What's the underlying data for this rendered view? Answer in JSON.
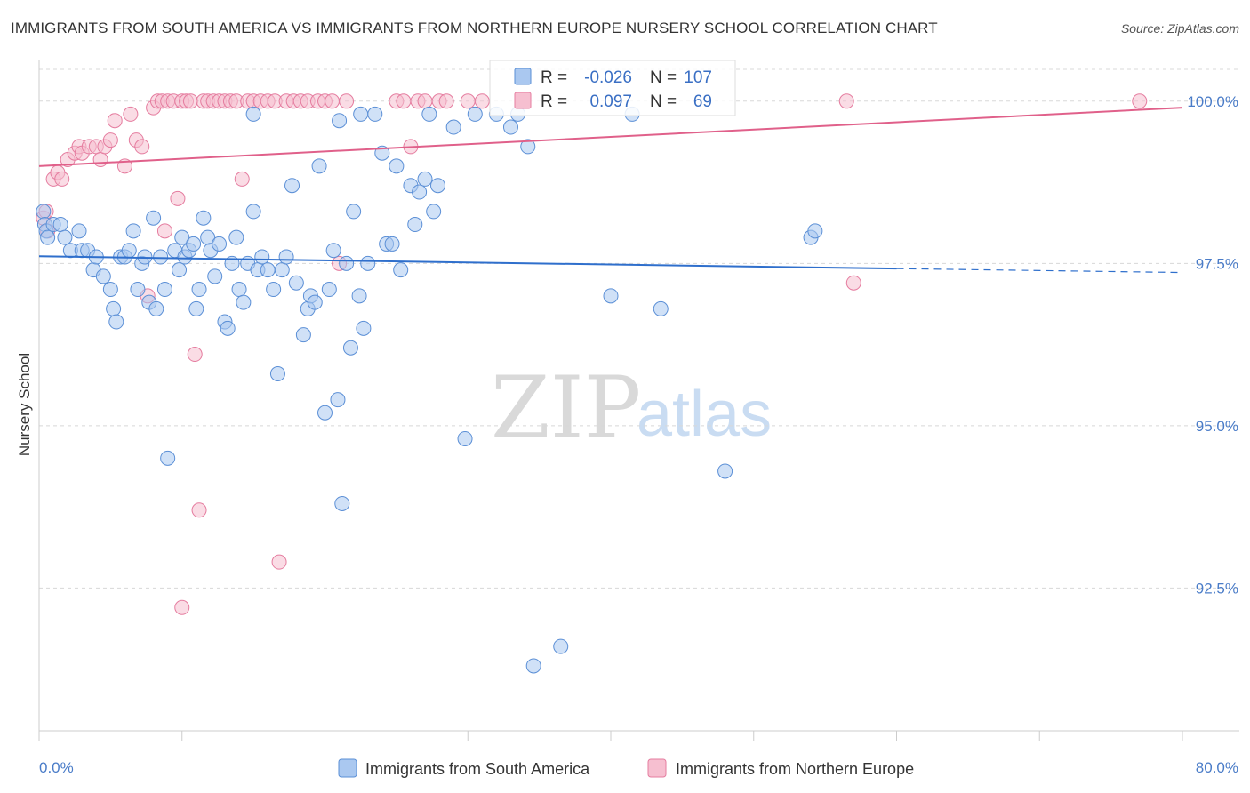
{
  "title": "IMMIGRANTS FROM SOUTH AMERICA VS IMMIGRANTS FROM NORTHERN EUROPE NURSERY SCHOOL CORRELATION CHART",
  "source": "Source: ZipAtlas.com",
  "watermark": {
    "zip": "ZIP",
    "atlas": "atlas"
  },
  "colors": {
    "blue_fill": "#aac8f0",
    "blue_stroke": "#5b8fd6",
    "blue_line": "#2f6fcc",
    "pink_fill": "#f6bfd0",
    "pink_stroke": "#e57c9f",
    "pink_line": "#e0608a",
    "grid": "#d8d8d8",
    "tick_text": "#4a7cc8"
  },
  "legend": {
    "r_label": "R =",
    "n_label": "N =",
    "rows": [
      {
        "series": "blue",
        "r": "-0.026",
        "n": "107"
      },
      {
        "series": "pink",
        "r": "0.097",
        "n": "69"
      }
    ]
  },
  "chart_data": {
    "type": "scatter",
    "title": "IMMIGRANTS FROM SOUTH AMERICA VS IMMIGRANTS FROM NORTHERN EUROPE NURSERY SCHOOL CORRELATION CHART",
    "xlabel": "",
    "ylabel": "Nursery School",
    "xlim": [
      0,
      80
    ],
    "ylim": [
      90.3,
      100.6
    ],
    "x_tick_labels": [
      "0.0%",
      "80.0%"
    ],
    "y_ticks": [
      92.5,
      95.0,
      97.5,
      100.0
    ],
    "y_tick_labels": [
      "92.5%",
      "95.0%",
      "97.5%",
      "100.0%"
    ],
    "grid": true,
    "series": [
      {
        "name": "Immigrants from South America",
        "color": "blue",
        "r": -0.026,
        "n": 107,
        "trend": {
          "x0": 0,
          "y0": 97.61,
          "x1": 60,
          "y1": 97.42,
          "dashed_to": 80,
          "dashed_y": 97.36
        },
        "points": [
          [
            0.3,
            98.3
          ],
          [
            0.4,
            98.1
          ],
          [
            0.5,
            98.0
          ],
          [
            0.6,
            97.9
          ],
          [
            1.0,
            98.1
          ],
          [
            1.5,
            98.1
          ],
          [
            1.8,
            97.9
          ],
          [
            2.2,
            97.7
          ],
          [
            2.8,
            98.0
          ],
          [
            3.0,
            97.7
          ],
          [
            3.4,
            97.7
          ],
          [
            3.8,
            97.4
          ],
          [
            4.0,
            97.6
          ],
          [
            4.5,
            97.3
          ],
          [
            5.0,
            97.1
          ],
          [
            5.2,
            96.8
          ],
          [
            5.4,
            96.6
          ],
          [
            5.7,
            97.6
          ],
          [
            6.0,
            97.6
          ],
          [
            6.3,
            97.7
          ],
          [
            6.6,
            98.0
          ],
          [
            6.9,
            97.1
          ],
          [
            7.2,
            97.5
          ],
          [
            7.4,
            97.6
          ],
          [
            7.7,
            96.9
          ],
          [
            8.0,
            98.2
          ],
          [
            8.2,
            96.8
          ],
          [
            8.5,
            97.6
          ],
          [
            8.8,
            97.1
          ],
          [
            9.0,
            94.5
          ],
          [
            9.5,
            97.7
          ],
          [
            9.8,
            97.4
          ],
          [
            10.0,
            97.9
          ],
          [
            10.2,
            97.6
          ],
          [
            10.5,
            97.7
          ],
          [
            10.8,
            97.8
          ],
          [
            11.0,
            96.8
          ],
          [
            11.2,
            97.1
          ],
          [
            11.5,
            98.2
          ],
          [
            11.8,
            97.9
          ],
          [
            12.0,
            97.7
          ],
          [
            12.3,
            97.3
          ],
          [
            12.6,
            97.8
          ],
          [
            13.0,
            96.6
          ],
          [
            13.2,
            96.5
          ],
          [
            13.5,
            97.5
          ],
          [
            13.8,
            97.9
          ],
          [
            14.0,
            97.1
          ],
          [
            14.3,
            96.9
          ],
          [
            14.6,
            97.5
          ],
          [
            15.0,
            98.3
          ],
          [
            15.3,
            97.4
          ],
          [
            15.6,
            97.6
          ],
          [
            16.0,
            97.4
          ],
          [
            16.4,
            97.1
          ],
          [
            16.7,
            95.8
          ],
          [
            17.0,
            97.4
          ],
          [
            17.3,
            97.6
          ],
          [
            17.7,
            98.7
          ],
          [
            18.0,
            97.2
          ],
          [
            18.5,
            96.4
          ],
          [
            18.8,
            96.8
          ],
          [
            19.0,
            97.0
          ],
          [
            19.3,
            96.9
          ],
          [
            19.6,
            99.0
          ],
          [
            20.0,
            95.2
          ],
          [
            20.3,
            97.1
          ],
          [
            20.6,
            97.7
          ],
          [
            20.9,
            95.4
          ],
          [
            21.2,
            93.8
          ],
          [
            21.5,
            97.5
          ],
          [
            21.8,
            96.2
          ],
          [
            22.0,
            98.3
          ],
          [
            22.4,
            97.0
          ],
          [
            22.7,
            96.5
          ],
          [
            23.0,
            97.5
          ],
          [
            23.5,
            99.8
          ],
          [
            24.0,
            99.2
          ],
          [
            24.3,
            97.8
          ],
          [
            24.7,
            97.8
          ],
          [
            25.0,
            99.0
          ],
          [
            25.3,
            97.4
          ],
          [
            26.0,
            98.7
          ],
          [
            26.3,
            98.1
          ],
          [
            26.6,
            98.6
          ],
          [
            27.0,
            98.8
          ],
          [
            27.3,
            99.8
          ],
          [
            27.6,
            98.3
          ],
          [
            27.9,
            98.7
          ],
          [
            29.0,
            99.6
          ],
          [
            29.8,
            94.8
          ],
          [
            30.5,
            99.8
          ],
          [
            32.0,
            99.8
          ],
          [
            33.0,
            99.6
          ],
          [
            33.5,
            99.8
          ],
          [
            34.2,
            99.3
          ],
          [
            34.6,
            91.3
          ],
          [
            36.5,
            91.6
          ],
          [
            40.0,
            97.0
          ],
          [
            41.5,
            99.8
          ],
          [
            43.5,
            96.8
          ],
          [
            48.0,
            94.3
          ],
          [
            54.0,
            97.9
          ],
          [
            54.3,
            98.0
          ],
          [
            21.0,
            99.7
          ],
          [
            22.5,
            99.8
          ],
          [
            15.0,
            99.8
          ]
        ]
      },
      {
        "name": "Immigrants from Northern Europe",
        "color": "pink",
        "r": 0.097,
        "n": 69,
        "trend": {
          "x0": 0,
          "y0": 99.0,
          "x1": 80,
          "y1": 99.9
        },
        "points": [
          [
            0.3,
            98.2
          ],
          [
            0.5,
            98.3
          ],
          [
            0.6,
            98.0
          ],
          [
            1.0,
            98.8
          ],
          [
            1.3,
            98.9
          ],
          [
            1.6,
            98.8
          ],
          [
            2.0,
            99.1
          ],
          [
            2.5,
            99.2
          ],
          [
            2.8,
            99.3
          ],
          [
            3.0,
            99.2
          ],
          [
            3.5,
            99.3
          ],
          [
            4.0,
            99.3
          ],
          [
            4.3,
            99.1
          ],
          [
            4.6,
            99.3
          ],
          [
            5.0,
            99.4
          ],
          [
            5.3,
            99.7
          ],
          [
            6.0,
            99.0
          ],
          [
            6.4,
            99.8
          ],
          [
            6.8,
            99.4
          ],
          [
            7.2,
            99.3
          ],
          [
            7.6,
            97.0
          ],
          [
            8.0,
            99.9
          ],
          [
            8.3,
            100.0
          ],
          [
            8.6,
            100.0
          ],
          [
            9.0,
            100.0
          ],
          [
            9.4,
            100.0
          ],
          [
            9.7,
            98.5
          ],
          [
            10.0,
            100.0
          ],
          [
            10.3,
            100.0
          ],
          [
            10.6,
            100.0
          ],
          [
            10.9,
            96.1
          ],
          [
            11.2,
            93.7
          ],
          [
            11.5,
            100.0
          ],
          [
            11.8,
            100.0
          ],
          [
            12.2,
            100.0
          ],
          [
            12.6,
            100.0
          ],
          [
            13.0,
            100.0
          ],
          [
            13.4,
            100.0
          ],
          [
            13.8,
            100.0
          ],
          [
            14.2,
            98.8
          ],
          [
            14.6,
            100.0
          ],
          [
            15.0,
            100.0
          ],
          [
            15.5,
            100.0
          ],
          [
            16.0,
            100.0
          ],
          [
            16.5,
            100.0
          ],
          [
            16.8,
            92.9
          ],
          [
            17.3,
            100.0
          ],
          [
            17.8,
            100.0
          ],
          [
            18.3,
            100.0
          ],
          [
            18.8,
            100.0
          ],
          [
            19.5,
            100.0
          ],
          [
            20.0,
            100.0
          ],
          [
            20.5,
            100.0
          ],
          [
            21.0,
            97.5
          ],
          [
            21.5,
            100.0
          ],
          [
            25.0,
            100.0
          ],
          [
            25.5,
            100.0
          ],
          [
            26.0,
            99.3
          ],
          [
            26.5,
            100.0
          ],
          [
            27.0,
            100.0
          ],
          [
            28.0,
            100.0
          ],
          [
            28.5,
            100.0
          ],
          [
            30.0,
            100.0
          ],
          [
            31.0,
            100.0
          ],
          [
            8.8,
            98.0
          ],
          [
            10.0,
            92.2
          ],
          [
            56.5,
            100.0
          ],
          [
            57.0,
            97.2
          ],
          [
            77.0,
            100.0
          ]
        ]
      }
    ]
  }
}
